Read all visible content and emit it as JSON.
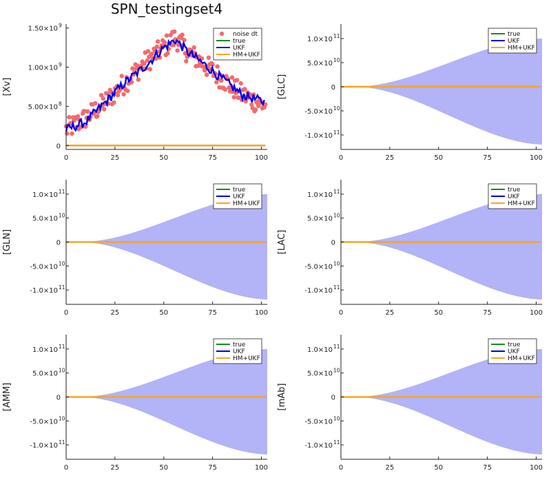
{
  "chart_data": {
    "title": "SPN_testingset4",
    "type": "line",
    "colors": {
      "noise": "#f26b6b",
      "true": "#1a8a1a",
      "ukf": "#0000ee",
      "hm_ukf": "#f5a623",
      "band": "#b3b3f7"
    },
    "panels": [
      {
        "ylabel": "[Xv]",
        "xlim": [
          0,
          103
        ],
        "ylim": [
          -0.05,
          1.55
        ],
        "x_ticks": [
          {
            "v": 0,
            "label": "0"
          },
          {
            "v": 25,
            "label": "25"
          },
          {
            "v": 50,
            "label": "50"
          },
          {
            "v": 75,
            "label": "75"
          },
          {
            "v": 100,
            "label": "100"
          }
        ],
        "y_ticks": [
          {
            "v": 0,
            "label": "0",
            "exp": ""
          },
          {
            "v": 0.5,
            "label": "5.00×10",
            "exp": "8"
          },
          {
            "v": 1.0,
            "label": "1.00×10",
            "exp": "9"
          },
          {
            "v": 1.5,
            "label": "1.50×10",
            "exp": "9"
          }
        ],
        "y_scale_note": "values in units of 1e9",
        "legend": [
          "noise dt",
          "true",
          "UKF",
          "HM+UKF"
        ],
        "noise_series": {
          "x_start": 0,
          "x_end": 102,
          "anchors": [
            [
              0,
              0.2
            ],
            [
              10,
              0.35
            ],
            [
              20,
              0.55
            ],
            [
              30,
              0.8
            ],
            [
              40,
              1.05
            ],
            [
              50,
              1.25
            ],
            [
              56,
              1.38
            ],
            [
              62,
              1.2
            ],
            [
              70,
              1.05
            ],
            [
              80,
              0.85
            ],
            [
              90,
              0.65
            ],
            [
              102,
              0.5
            ]
          ]
        },
        "ukf_series": {
          "x_start": 0,
          "x_end": 102,
          "anchors": [
            [
              0,
              0.2
            ],
            [
              10,
              0.3
            ],
            [
              20,
              0.55
            ],
            [
              30,
              0.8
            ],
            [
              40,
              1.0
            ],
            [
              50,
              1.25
            ],
            [
              56,
              1.35
            ],
            [
              62,
              1.2
            ],
            [
              70,
              1.05
            ],
            [
              80,
              0.85
            ],
            [
              90,
              0.65
            ],
            [
              102,
              0.55
            ]
          ]
        },
        "true_series": {
          "x": [
            0,
            102
          ],
          "y": [
            0,
            0
          ]
        },
        "hm_ukf_series": {
          "x": [
            0,
            102
          ],
          "y": [
            0,
            0
          ]
        }
      },
      {
        "ylabel": "[GLC]",
        "xlim": [
          0,
          103
        ],
        "ylim": [
          -1.3,
          1.3
        ],
        "x_ticks": [
          {
            "v": 0,
            "label": "0"
          },
          {
            "v": 25,
            "label": "25"
          },
          {
            "v": 50,
            "label": "50"
          },
          {
            "v": 75,
            "label": "75"
          },
          {
            "v": 100,
            "label": "100"
          }
        ],
        "y_ticks": [
          {
            "v": -1.0,
            "label": "-1.0×10",
            "exp": "11"
          },
          {
            "v": -0.5,
            "label": "-5.0×10",
            "exp": "10"
          },
          {
            "v": 0,
            "label": "0",
            "exp": ""
          },
          {
            "v": 0.5,
            "label": "5.0×10",
            "exp": "10"
          },
          {
            "v": 1.0,
            "label": "1.0×10",
            "exp": "11"
          }
        ],
        "y_scale_note": "values in units of 1e11",
        "legend": [
          "true",
          "UKF",
          "HM+UKF"
        ],
        "band": {
          "x_start": 0,
          "x_end": 103,
          "upper_end": 1.0,
          "lower_end": -1.2
        },
        "true_series": {
          "x": [
            0,
            102
          ],
          "y": [
            0,
            0
          ]
        },
        "ukf_series": {
          "x": [
            0,
            102
          ],
          "y": [
            0,
            0
          ]
        },
        "hm_ukf_series": {
          "x": [
            0,
            102
          ],
          "y": [
            0,
            0
          ]
        }
      },
      {
        "ylabel": "[GLN]",
        "xlim": [
          0,
          103
        ],
        "ylim": [
          -1.3,
          1.3
        ],
        "x_ticks": [
          {
            "v": 0,
            "label": "0"
          },
          {
            "v": 25,
            "label": "25"
          },
          {
            "v": 50,
            "label": "50"
          },
          {
            "v": 75,
            "label": "75"
          },
          {
            "v": 100,
            "label": "100"
          }
        ],
        "y_ticks": [
          {
            "v": -1.0,
            "label": "-1.0×10",
            "exp": "11"
          },
          {
            "v": -0.5,
            "label": "-5.0×10",
            "exp": "10"
          },
          {
            "v": 0,
            "label": "0",
            "exp": ""
          },
          {
            "v": 0.5,
            "label": "5.0×10",
            "exp": "10"
          },
          {
            "v": 1.0,
            "label": "1.0×10",
            "exp": "11"
          }
        ],
        "legend": [
          "true",
          "UKF",
          "HM+UKF"
        ],
        "band": {
          "x_start": 0,
          "x_end": 103,
          "upper_end": 1.0,
          "lower_end": -1.2
        },
        "true_series": {
          "x": [
            0,
            102
          ],
          "y": [
            0,
            0
          ]
        },
        "ukf_series": {
          "x": [
            0,
            102
          ],
          "y": [
            0,
            0
          ]
        },
        "hm_ukf_series": {
          "x": [
            0,
            102
          ],
          "y": [
            0,
            0
          ]
        }
      },
      {
        "ylabel": "[LAC]",
        "xlim": [
          0,
          103
        ],
        "ylim": [
          -1.3,
          1.3
        ],
        "x_ticks": [
          {
            "v": 0,
            "label": "0"
          },
          {
            "v": 25,
            "label": "25"
          },
          {
            "v": 50,
            "label": "50"
          },
          {
            "v": 75,
            "label": "75"
          },
          {
            "v": 100,
            "label": "100"
          }
        ],
        "y_ticks": [
          {
            "v": -1.0,
            "label": "-1.0×10",
            "exp": "11"
          },
          {
            "v": -0.5,
            "label": "-5.0×10",
            "exp": "10"
          },
          {
            "v": 0,
            "label": "0",
            "exp": ""
          },
          {
            "v": 0.5,
            "label": "5.0×10",
            "exp": "10"
          },
          {
            "v": 1.0,
            "label": "1.0×10",
            "exp": "11"
          }
        ],
        "legend": [
          "true",
          "UKF",
          "HM+UKF"
        ],
        "band": {
          "x_start": 0,
          "x_end": 103,
          "upper_end": 1.0,
          "lower_end": -1.2
        },
        "true_series": {
          "x": [
            0,
            102
          ],
          "y": [
            0,
            0
          ]
        },
        "ukf_series": {
          "x": [
            0,
            102
          ],
          "y": [
            0,
            0
          ]
        },
        "hm_ukf_series": {
          "x": [
            0,
            102
          ],
          "y": [
            0,
            0
          ]
        }
      },
      {
        "ylabel": "[AMM]",
        "xlim": [
          0,
          103
        ],
        "ylim": [
          -1.3,
          1.3
        ],
        "x_ticks": [
          {
            "v": 0,
            "label": "0"
          },
          {
            "v": 25,
            "label": "25"
          },
          {
            "v": 50,
            "label": "50"
          },
          {
            "v": 75,
            "label": "75"
          },
          {
            "v": 100,
            "label": "100"
          }
        ],
        "y_ticks": [
          {
            "v": -1.0,
            "label": "-1.0×10",
            "exp": "11"
          },
          {
            "v": -0.5,
            "label": "-5.0×10",
            "exp": "10"
          },
          {
            "v": 0,
            "label": "0",
            "exp": ""
          },
          {
            "v": 0.5,
            "label": "5.0×10",
            "exp": "10"
          },
          {
            "v": 1.0,
            "label": "1.0×10",
            "exp": "11"
          }
        ],
        "legend": [
          "true",
          "UKF",
          "HM+UKF"
        ],
        "band": {
          "x_start": 0,
          "x_end": 103,
          "upper_end": 1.0,
          "lower_end": -1.2
        },
        "true_series": {
          "x": [
            0,
            102
          ],
          "y": [
            0,
            0
          ]
        },
        "ukf_series": {
          "x": [
            0,
            102
          ],
          "y": [
            0,
            0
          ]
        },
        "hm_ukf_series": {
          "x": [
            0,
            102
          ],
          "y": [
            0,
            0
          ]
        }
      },
      {
        "ylabel": "[mAb]",
        "xlim": [
          0,
          103
        ],
        "ylim": [
          -1.3,
          1.3
        ],
        "x_ticks": [
          {
            "v": 0,
            "label": "0"
          },
          {
            "v": 25,
            "label": "25"
          },
          {
            "v": 50,
            "label": "50"
          },
          {
            "v": 75,
            "label": "75"
          },
          {
            "v": 100,
            "label": "100"
          }
        ],
        "y_ticks": [
          {
            "v": -1.0,
            "label": "-1.0×10",
            "exp": "11"
          },
          {
            "v": -0.5,
            "label": "-5.0×10",
            "exp": "10"
          },
          {
            "v": 0,
            "label": "0",
            "exp": ""
          },
          {
            "v": 0.5,
            "label": "5.0×10",
            "exp": "10"
          },
          {
            "v": 1.0,
            "label": "1.0×10",
            "exp": "11"
          }
        ],
        "legend": [
          "true",
          "UKF",
          "HM+UKF"
        ],
        "band": {
          "x_start": 0,
          "x_end": 103,
          "upper_end": 1.0,
          "lower_end": -1.2
        },
        "true_series": {
          "x": [
            0,
            102
          ],
          "y": [
            0,
            0
          ]
        },
        "ukf_series": {
          "x": [
            0,
            102
          ],
          "y": [
            0,
            0
          ]
        },
        "hm_ukf_series": {
          "x": [
            0,
            102
          ],
          "y": [
            0,
            0
          ]
        }
      }
    ]
  }
}
